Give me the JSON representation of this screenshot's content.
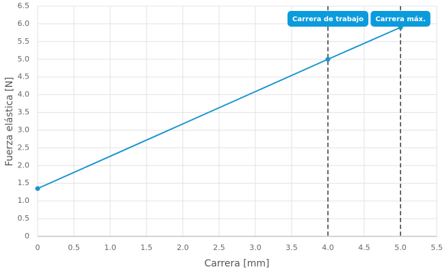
{
  "chart_data": {
    "type": "line",
    "x_label": "Carrera [mm]",
    "y_label": "Fuerza elástica [N]",
    "x": [
      0,
      4,
      5
    ],
    "series": [
      {
        "name": "Fuerza elástica",
        "color": "#1a95d0",
        "values": [
          1.35,
          5.0,
          5.9
        ]
      }
    ],
    "xlim": [
      0,
      5.5
    ],
    "xticks": [
      0,
      0.5,
      {
        "value": 1,
        "label": "1.0"
      },
      1.5,
      {
        "value": 2,
        "label": "2.0"
      },
      2.5,
      {
        "value": 3,
        "label": "3.0"
      },
      3.5,
      {
        "value": 4,
        "label": "4.0"
      },
      4.5,
      {
        "value": 5,
        "label": "5.0"
      },
      5.5
    ],
    "ylim": [
      0,
      6.5
    ],
    "yticks": [
      0,
      0.5,
      {
        "value": 1,
        "label": "1.0"
      },
      1.5,
      {
        "value": 2,
        "label": "2.0"
      },
      2.5,
      {
        "value": 3,
        "label": "3.0"
      },
      3.5,
      {
        "value": 4,
        "label": "4.0"
      },
      4.5,
      {
        "value": 5,
        "label": "5.0"
      },
      5.5,
      {
        "value": 6,
        "label": "6.0"
      },
      6.5
    ],
    "grid": true,
    "annotations": [
      {
        "x": 4,
        "label": "Carrera de trabajo"
      },
      {
        "x": 5,
        "label": "Carrera máx."
      }
    ],
    "annotation_color": "#0b9bdc"
  }
}
